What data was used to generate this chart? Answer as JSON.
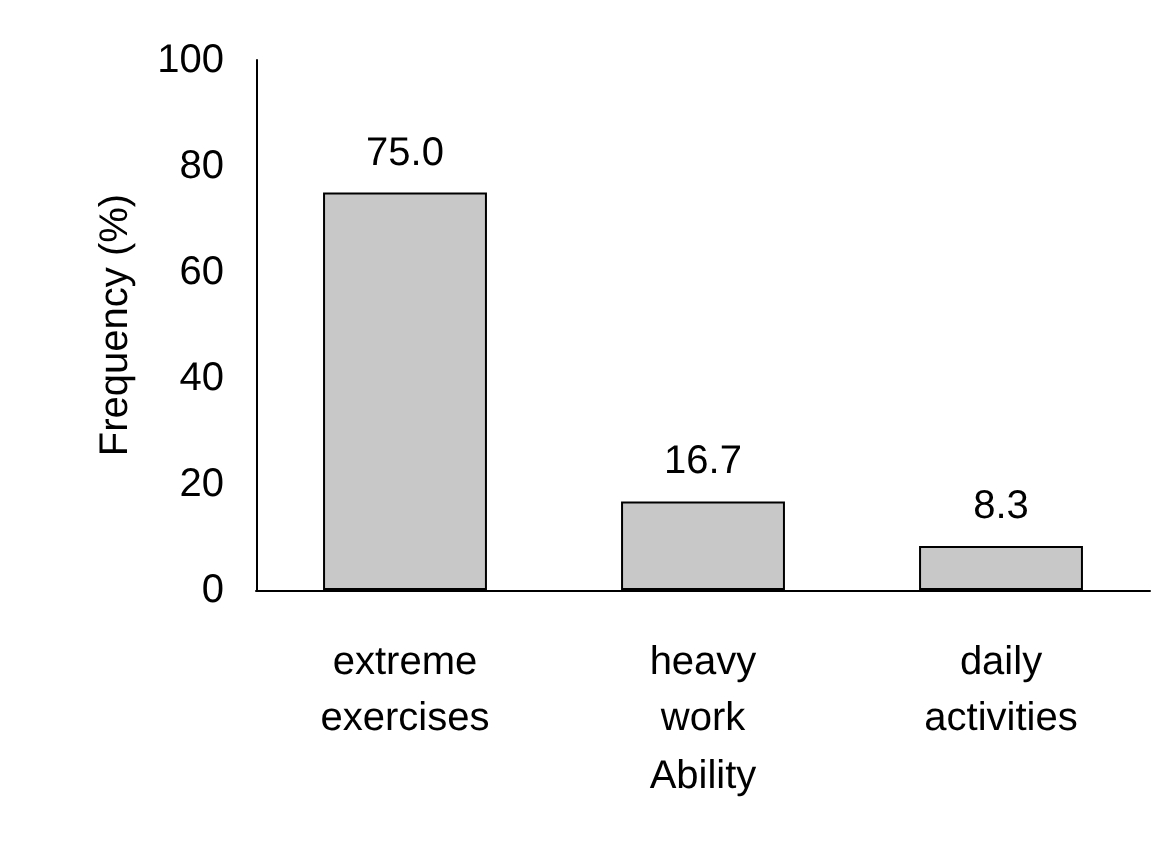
{
  "chart_data": {
    "type": "bar",
    "xlabel": "Ability",
    "ylabel": "Frequency (%)",
    "categories": [
      "extreme exercises",
      "heavy work",
      "daily activities"
    ],
    "values": [
      75.0,
      16.7,
      8.3
    ],
    "value_labels": [
      "75.0",
      "16.7",
      "8.3"
    ],
    "color": "#c8c8c8",
    "ylim": [
      0,
      100
    ],
    "yticks": [
      0,
      20,
      40,
      60,
      80,
      100
    ],
    "grid": false
  }
}
